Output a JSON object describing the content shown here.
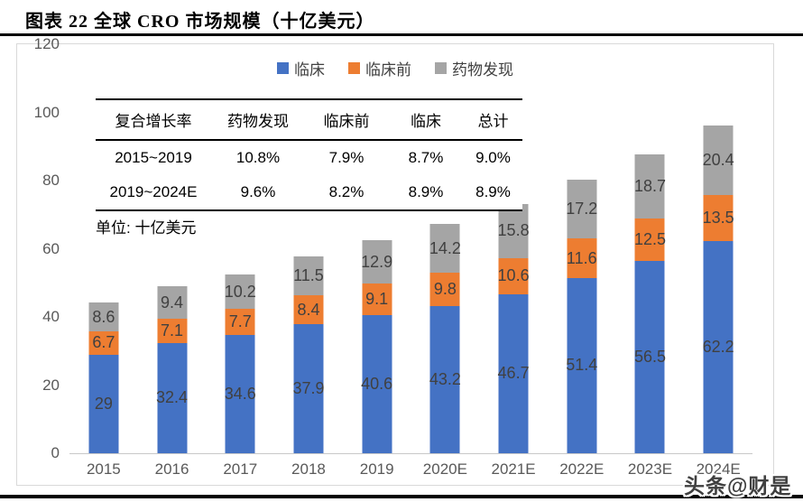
{
  "page": {
    "title": "图表 22 全球 CRO 市场规模（十亿美元）",
    "watermark": "头条@财是"
  },
  "chart_data": {
    "type": "bar",
    "stacked": true,
    "title": "全球CRO市场规模（十亿美元）",
    "categories": [
      "2015",
      "2016",
      "2017",
      "2018",
      "2019",
      "2020E",
      "2021E",
      "2022E",
      "2023E",
      "2024E"
    ],
    "series": [
      {
        "id": "clinical",
        "name": "临床",
        "color": "#4472C4",
        "values": [
          29,
          32.4,
          34.6,
          37.9,
          40.6,
          43.2,
          46.7,
          51.4,
          56.5,
          62.2
        ]
      },
      {
        "id": "preclinical",
        "name": "临床前",
        "color": "#ED7D31",
        "values": [
          6.7,
          7.1,
          7.7,
          8.4,
          9.1,
          9.8,
          10.6,
          11.6,
          12.5,
          13.5
        ]
      },
      {
        "id": "discovery",
        "name": "药物发现",
        "color": "#A5A5A5",
        "values": [
          8.6,
          9.4,
          10.2,
          11.5,
          12.9,
          14.2,
          15.8,
          17.2,
          18.7,
          20.4
        ]
      }
    ],
    "ylim": [
      0,
      120
    ],
    "yticks": [
      0,
      20,
      40,
      60,
      80,
      100,
      120
    ],
    "grid": false,
    "legend_position": "top",
    "data_labels": true
  },
  "table": {
    "headers": [
      "复合增长率",
      "药物发现",
      "临床前",
      "临床",
      "总计"
    ],
    "rows": [
      [
        "2015~2019",
        "10.8%",
        "7.9%",
        "8.7%",
        "9.0%"
      ],
      [
        "2019~2024E",
        "9.6%",
        "8.2%",
        "8.9%",
        "8.9%"
      ]
    ],
    "unit_note": "单位: 十亿美元"
  },
  "colors": {
    "clinical": "#4472C4",
    "preclinical": "#ED7D31",
    "discovery": "#A5A5A5",
    "axis_text": "#595959",
    "data_label": "#404040"
  }
}
